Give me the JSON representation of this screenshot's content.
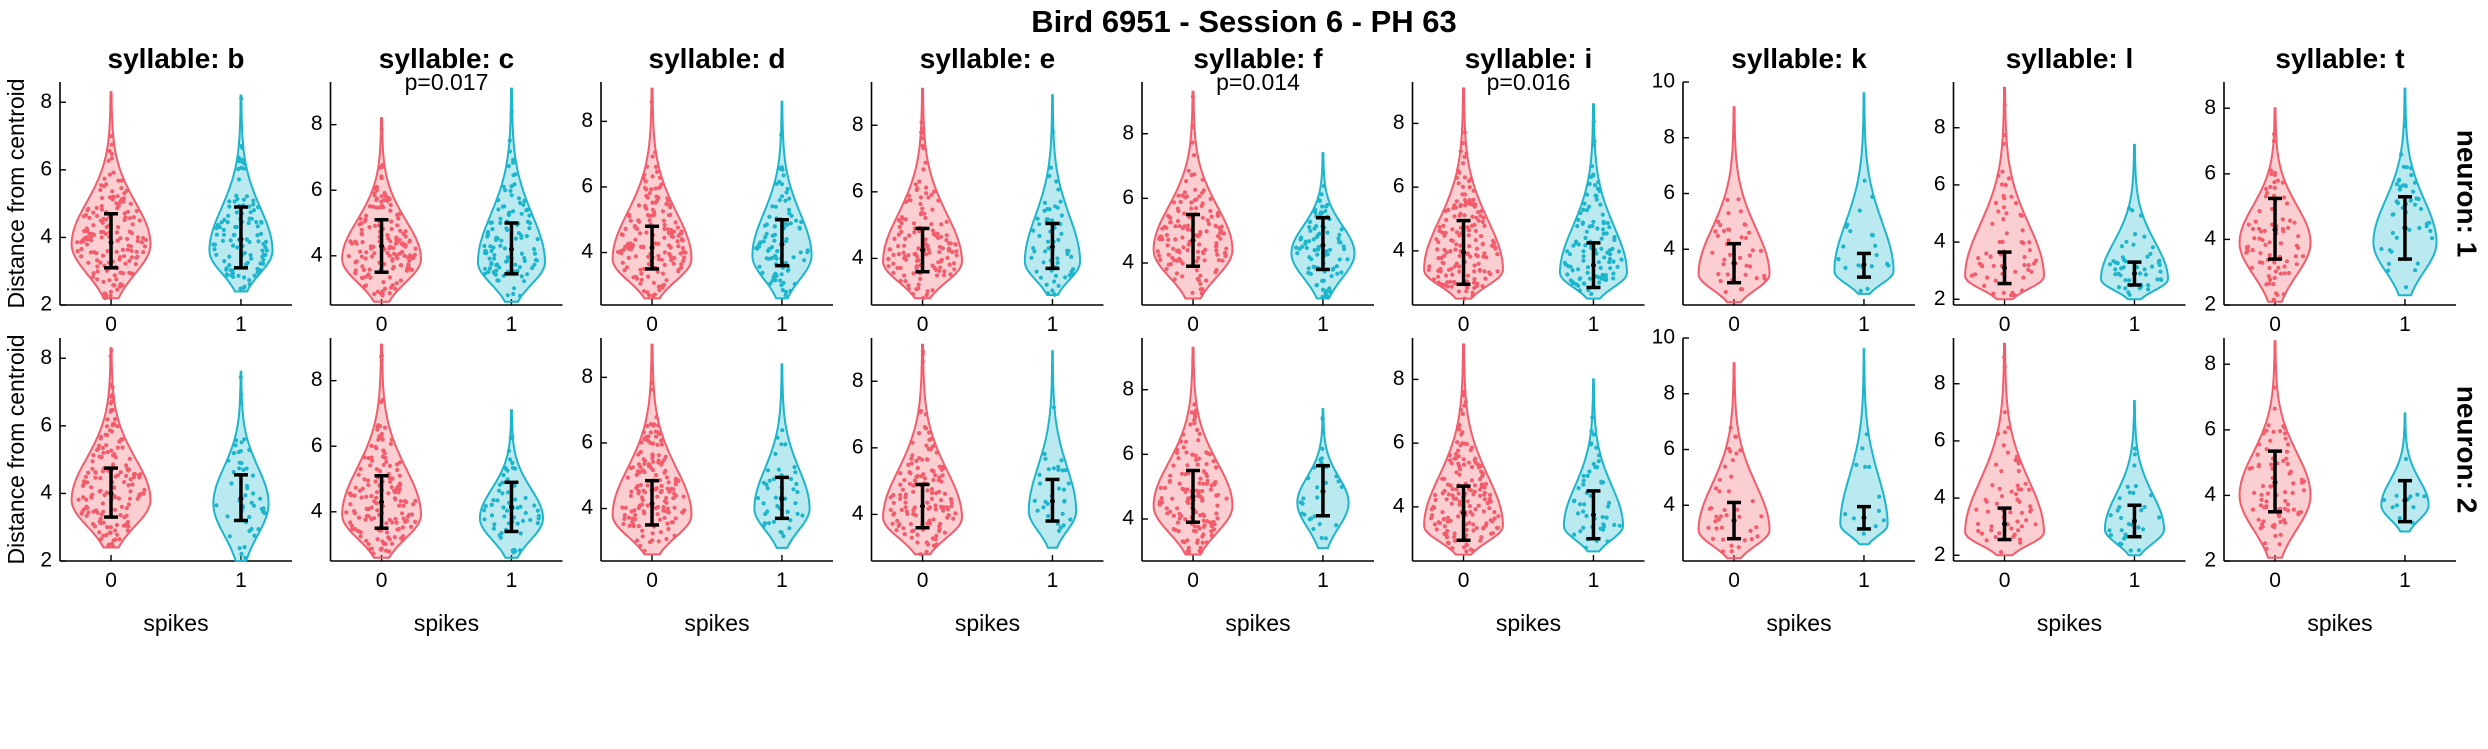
{
  "title": "Bird 6951 - Session 6 - PH 63",
  "colors": {
    "group0": "#F25C6B",
    "group1": "#1DB5CC"
  },
  "chart_data": {
    "type": "violin",
    "title": "Bird 6951 - Session 6 - PH 63",
    "xlabel": "spikes",
    "ylabel": "Distance from centroid",
    "x_categories": [
      "0",
      "1"
    ],
    "rows": [
      {
        "label": "neuron: 1"
      },
      {
        "label": "neuron: 2"
      }
    ],
    "panels": [
      {
        "title": "syllable: b",
        "ylim": [
          2,
          8.6
        ],
        "yticks": [
          "2",
          "4",
          "6",
          "8"
        ],
        "rows": [
          {
            "pvalue": "",
            "groups": [
              {
                "x": "0",
                "mean": 3.85,
                "err_low": 3.1,
                "err_high": 4.7,
                "min": 2.2,
                "max": 8.3,
                "mode": 3.8,
                "width": 1.0,
                "n": 160
              },
              {
                "x": "1",
                "mean": 3.95,
                "err_low": 3.1,
                "err_high": 4.9,
                "min": 2.4,
                "max": 8.2,
                "mode": 3.6,
                "width": 0.8,
                "n": 110
              }
            ]
          },
          {
            "pvalue": "",
            "groups": [
              {
                "x": "0",
                "mean": 4.0,
                "err_low": 3.3,
                "err_high": 4.75,
                "min": 2.4,
                "max": 8.3,
                "mode": 3.8,
                "width": 1.0,
                "n": 160
              },
              {
                "x": "1",
                "mean": 3.85,
                "err_low": 3.2,
                "err_high": 4.55,
                "min": 2.0,
                "max": 7.6,
                "mode": 3.7,
                "width": 0.7,
                "n": 50
              }
            ]
          }
        ]
      },
      {
        "title": "syllable: c",
        "ylim": [
          2.5,
          9.3
        ],
        "yticks": [
          "4",
          "6",
          "8"
        ],
        "rows": [
          {
            "pvalue": "p=0.017",
            "groups": [
              {
                "x": "0",
                "mean": 4.3,
                "err_low": 3.5,
                "err_high": 5.1,
                "min": 2.6,
                "max": 8.2,
                "mode": 3.9,
                "width": 1.0,
                "n": 160
              },
              {
                "x": "1",
                "mean": 4.2,
                "err_low": 3.45,
                "err_high": 5.0,
                "min": 2.6,
                "max": 9.1,
                "mode": 3.8,
                "width": 0.85,
                "n": 110
              }
            ]
          },
          {
            "pvalue": "",
            "groups": [
              {
                "x": "0",
                "mean": 4.3,
                "err_low": 3.5,
                "err_high": 5.1,
                "min": 2.6,
                "max": 9.1,
                "mode": 3.9,
                "width": 1.0,
                "n": 160
              },
              {
                "x": "1",
                "mean": 4.15,
                "err_low": 3.4,
                "err_high": 4.9,
                "min": 2.6,
                "max": 7.1,
                "mode": 3.8,
                "width": 0.8,
                "n": 60
              }
            ]
          }
        ]
      },
      {
        "title": "syllable: d",
        "ylim": [
          2.4,
          9.2
        ],
        "yticks": [
          "4",
          "6",
          "8"
        ],
        "rows": [
          {
            "pvalue": "",
            "groups": [
              {
                "x": "0",
                "mean": 4.15,
                "err_low": 3.5,
                "err_high": 4.8,
                "min": 2.6,
                "max": 9.0,
                "mode": 3.8,
                "width": 1.0,
                "n": 160
              },
              {
                "x": "1",
                "mean": 4.25,
                "err_low": 3.6,
                "err_high": 5.0,
                "min": 2.6,
                "max": 8.6,
                "mode": 3.9,
                "width": 0.75,
                "n": 90
              }
            ]
          },
          {
            "pvalue": "",
            "groups": [
              {
                "x": "0",
                "mean": 4.15,
                "err_low": 3.5,
                "err_high": 4.85,
                "min": 2.6,
                "max": 9.0,
                "mode": 3.8,
                "width": 1.0,
                "n": 160
              },
              {
                "x": "1",
                "mean": 4.3,
                "err_low": 3.7,
                "err_high": 4.95,
                "min": 2.8,
                "max": 8.4,
                "mode": 4.0,
                "width": 0.7,
                "n": 45
              }
            ]
          }
        ]
      },
      {
        "title": "syllable: e",
        "ylim": [
          2.6,
          9.3
        ],
        "yticks": [
          "4",
          "6",
          "8"
        ],
        "rows": [
          {
            "pvalue": "",
            "groups": [
              {
                "x": "0",
                "mean": 4.25,
                "err_low": 3.6,
                "err_high": 4.9,
                "min": 2.8,
                "max": 9.1,
                "mode": 3.9,
                "width": 1.0,
                "n": 140
              },
              {
                "x": "1",
                "mean": 4.35,
                "err_low": 3.7,
                "err_high": 5.05,
                "min": 2.9,
                "max": 8.9,
                "mode": 3.9,
                "width": 0.7,
                "n": 60
              }
            ]
          },
          {
            "pvalue": "",
            "groups": [
              {
                "x": "0",
                "mean": 4.25,
                "err_low": 3.6,
                "err_high": 4.9,
                "min": 2.8,
                "max": 9.1,
                "mode": 3.9,
                "width": 1.0,
                "n": 140
              },
              {
                "x": "1",
                "mean": 4.4,
                "err_low": 3.8,
                "err_high": 5.05,
                "min": 3.0,
                "max": 8.9,
                "mode": 4.1,
                "width": 0.6,
                "n": 30
              }
            ]
          }
        ]
      },
      {
        "title": "syllable: f",
        "ylim": [
          2.7,
          9.6
        ],
        "yticks": [
          "4",
          "6",
          "8"
        ],
        "rows": [
          {
            "pvalue": "p=0.014",
            "groups": [
              {
                "x": "0",
                "mean": 4.7,
                "err_low": 3.9,
                "err_high": 5.5,
                "min": 2.9,
                "max": 9.3,
                "mode": 4.4,
                "width": 1.0,
                "n": 140
              },
              {
                "x": "1",
                "mean": 4.55,
                "err_low": 3.8,
                "err_high": 5.4,
                "min": 2.9,
                "max": 7.4,
                "mode": 4.3,
                "width": 0.8,
                "n": 90
              }
            ]
          },
          {
            "pvalue": "",
            "groups": [
              {
                "x": "0",
                "mean": 4.7,
                "err_low": 3.9,
                "err_high": 5.5,
                "min": 2.9,
                "max": 9.3,
                "mode": 4.4,
                "width": 1.0,
                "n": 140
              },
              {
                "x": "1",
                "mean": 4.85,
                "err_low": 4.1,
                "err_high": 5.65,
                "min": 3.1,
                "max": 7.4,
                "mode": 4.5,
                "width": 0.65,
                "n": 30
              }
            ]
          }
        ]
      },
      {
        "title": "syllable: i",
        "ylim": [
          2.3,
          9.3
        ],
        "yticks": [
          "4",
          "6",
          "8"
        ],
        "rows": [
          {
            "pvalue": "p=0.016",
            "groups": [
              {
                "x": "0",
                "mean": 3.95,
                "err_low": 2.95,
                "err_high": 4.95,
                "min": 2.5,
                "max": 9.1,
                "mode": 3.4,
                "width": 1.0,
                "n": 160
              },
              {
                "x": "1",
                "mean": 3.55,
                "err_low": 2.85,
                "err_high": 4.25,
                "min": 2.5,
                "max": 8.6,
                "mode": 3.3,
                "width": 0.85,
                "n": 110
              }
            ]
          },
          {
            "pvalue": "",
            "groups": [
              {
                "x": "0",
                "mean": 3.8,
                "err_low": 2.95,
                "err_high": 4.65,
                "min": 2.5,
                "max": 9.1,
                "mode": 3.4,
                "width": 1.0,
                "n": 160
              },
              {
                "x": "1",
                "mean": 3.75,
                "err_low": 3.0,
                "err_high": 4.5,
                "min": 2.6,
                "max": 8.0,
                "mode": 3.4,
                "width": 0.75,
                "n": 50
              }
            ]
          }
        ]
      },
      {
        "title": "syllable: k",
        "ylim": [
          2.0,
          10.0
        ],
        "yticks": [
          "4",
          "6",
          "8",
          "10"
        ],
        "rows": [
          {
            "pvalue": "",
            "groups": [
              {
                "x": "0",
                "mean": 3.5,
                "err_low": 2.8,
                "err_high": 4.2,
                "min": 2.1,
                "max": 9.1,
                "mode": 3.1,
                "width": 0.9,
                "n": 40
              },
              {
                "x": "1",
                "mean": 3.45,
                "err_low": 3.0,
                "err_high": 3.85,
                "min": 2.4,
                "max": 9.6,
                "mode": 3.2,
                "width": 0.75,
                "n": 20
              }
            ]
          },
          {
            "pvalue": "",
            "groups": [
              {
                "x": "0",
                "mean": 3.45,
                "err_low": 2.8,
                "err_high": 4.1,
                "min": 2.1,
                "max": 9.1,
                "mode": 3.1,
                "width": 0.9,
                "n": 40
              },
              {
                "x": "1",
                "mean": 3.55,
                "err_low": 3.15,
                "err_high": 3.95,
                "min": 2.6,
                "max": 9.6,
                "mode": 3.3,
                "width": 0.6,
                "n": 12
              }
            ]
          }
        ]
      },
      {
        "title": "syllable: l",
        "ylim": [
          1.8,
          9.6
        ],
        "yticks": [
          "2",
          "4",
          "6",
          "8"
        ],
        "rows": [
          {
            "pvalue": "",
            "groups": [
              {
                "x": "0",
                "mean": 3.1,
                "err_low": 2.55,
                "err_high": 3.65,
                "min": 2.0,
                "max": 9.4,
                "mode": 2.8,
                "width": 1.0,
                "n": 60
              },
              {
                "x": "1",
                "mean": 2.9,
                "err_low": 2.5,
                "err_high": 3.3,
                "min": 2.0,
                "max": 7.4,
                "mode": 2.7,
                "width": 0.85,
                "n": 50
              }
            ]
          },
          {
            "pvalue": "",
            "groups": [
              {
                "x": "0",
                "mean": 3.1,
                "err_low": 2.55,
                "err_high": 3.65,
                "min": 2.0,
                "max": 9.4,
                "mode": 2.8,
                "width": 1.0,
                "n": 60
              },
              {
                "x": "1",
                "mean": 3.2,
                "err_low": 2.65,
                "err_high": 3.75,
                "min": 2.0,
                "max": 7.4,
                "mode": 2.9,
                "width": 0.75,
                "n": 30
              }
            ]
          }
        ]
      },
      {
        "title": "syllable: t",
        "ylim": [
          2.0,
          8.8
        ],
        "yticks": [
          "2",
          "4",
          "6",
          "8"
        ],
        "rows": [
          {
            "pvalue": "",
            "groups": [
              {
                "x": "0",
                "mean": 4.3,
                "err_low": 3.4,
                "err_high": 5.25,
                "min": 2.1,
                "max": 8.0,
                "mode": 3.9,
                "width": 0.9,
                "n": 80
              },
              {
                "x": "1",
                "mean": 4.35,
                "err_low": 3.4,
                "err_high": 5.3,
                "min": 2.3,
                "max": 8.6,
                "mode": 3.9,
                "width": 0.8,
                "n": 45
              }
            ]
          },
          {
            "pvalue": "",
            "groups": [
              {
                "x": "0",
                "mean": 4.4,
                "err_low": 3.5,
                "err_high": 5.35,
                "min": 2.1,
                "max": 8.7,
                "mode": 4.0,
                "width": 0.9,
                "n": 80
              },
              {
                "x": "1",
                "mean": 3.85,
                "err_low": 3.2,
                "err_high": 4.45,
                "min": 2.9,
                "max": 6.5,
                "mode": 3.7,
                "width": 0.6,
                "n": 12
              }
            ]
          }
        ]
      }
    ]
  }
}
